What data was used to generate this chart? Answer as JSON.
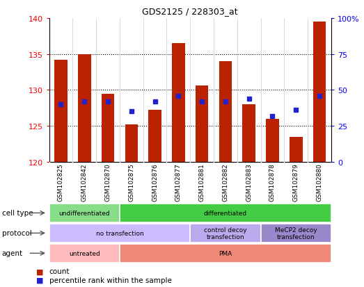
{
  "title": "GDS2125 / 228303_at",
  "samples": [
    "GSM102825",
    "GSM102842",
    "GSM102870",
    "GSM102875",
    "GSM102876",
    "GSM102877",
    "GSM102881",
    "GSM102882",
    "GSM102883",
    "GSM102878",
    "GSM102879",
    "GSM102880"
  ],
  "count_values": [
    134.2,
    135.0,
    129.5,
    125.2,
    127.2,
    136.5,
    130.6,
    134.0,
    128.0,
    126.0,
    123.5,
    139.5
  ],
  "percentile_values": [
    40,
    42,
    42,
    35,
    42,
    46,
    42,
    42,
    44,
    32,
    36,
    46
  ],
  "y_min": 120,
  "y_max": 140,
  "yticks_left": [
    120,
    125,
    130,
    135,
    140
  ],
  "yticks_right": [
    0,
    25,
    50,
    75,
    100
  ],
  "bar_color": "#bb2200",
  "dot_color": "#2222cc",
  "bar_bottom": 120,
  "cell_type_groups": [
    {
      "text": "undifferentiated",
      "start": 0,
      "end": 3,
      "color": "#88dd88"
    },
    {
      "text": "differentiated",
      "start": 3,
      "end": 12,
      "color": "#44cc44"
    }
  ],
  "protocol_groups": [
    {
      "text": "no transfection",
      "start": 0,
      "end": 6,
      "color": "#ccbbff"
    },
    {
      "text": "control decoy\ntransfection",
      "start": 6,
      "end": 9,
      "color": "#bbaaee"
    },
    {
      "text": "MeCP2 decoy\ntransfection",
      "start": 9,
      "end": 12,
      "color": "#9988cc"
    }
  ],
  "agent_groups": [
    {
      "text": "untreated",
      "start": 0,
      "end": 3,
      "color": "#ffbbbb"
    },
    {
      "text": "PMA",
      "start": 3,
      "end": 12,
      "color": "#ee8877"
    }
  ],
  "legend": [
    {
      "color": "#bb2200",
      "label": "count"
    },
    {
      "color": "#2222cc",
      "label": "percentile rank within the sample"
    }
  ]
}
